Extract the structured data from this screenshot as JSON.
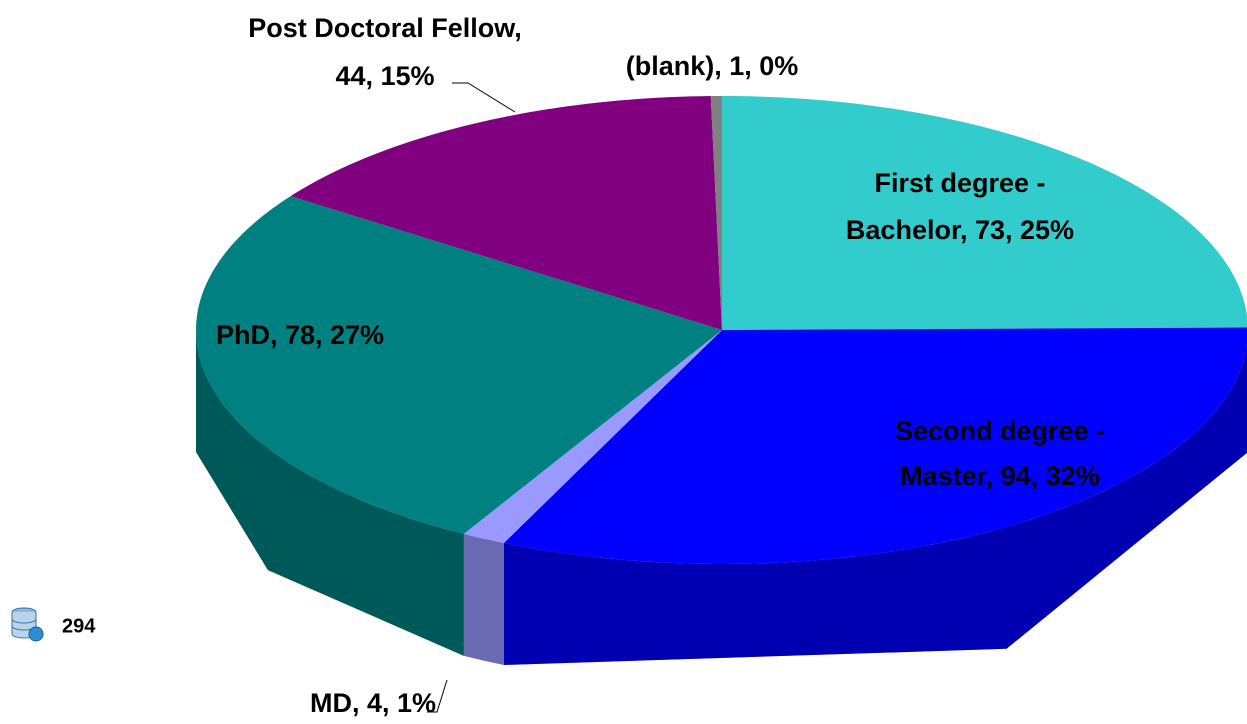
{
  "chart_data": {
    "type": "pie",
    "values": [
      73,
      94,
      4,
      78,
      44,
      1
    ],
    "value_labels": [
      [
        "First degree -",
        "Bachelor, 73, 25%"
      ],
      [
        "Second degree -",
        "Master, 94, 32%"
      ],
      [
        "MD, 4, 1%"
      ],
      [
        "PhD, 78, 27%"
      ],
      [
        "Post Doctoral Fellow,",
        "44, 15%"
      ],
      [
        "(blank), 1, 0%"
      ]
    ],
    "colors": [
      "#33CCCC",
      "#0000FF",
      "#9999FF",
      "#008080",
      "#800080",
      "#808080"
    ],
    "total": 294
  }
}
